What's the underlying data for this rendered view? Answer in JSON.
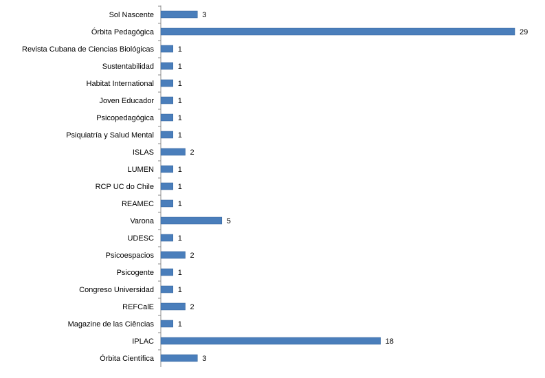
{
  "chart_data": {
    "type": "bar",
    "orientation": "horizontal",
    "categories": [
      "Sol Nascente",
      "Órbita Pedagógica",
      "Revista Cubana de Ciencias Biológicas",
      "Sustentabilidad",
      "Habitat International",
      "Joven Educador",
      "Psicopedagógica",
      "Psiquiatría y Salud Mental",
      "ISLAS",
      "LUMEN",
      "RCP UC do Chile",
      "REAMEC",
      "Varona",
      "UDESC",
      "Psicoespacios",
      "Psicogente",
      "Congreso Universidad",
      "REFCalE",
      "Magazine de las Ciências",
      "IPLAC",
      "Órbita Científica"
    ],
    "values": [
      3,
      29,
      1,
      1,
      1,
      1,
      1,
      1,
      2,
      1,
      1,
      1,
      5,
      1,
      2,
      1,
      1,
      2,
      1,
      18,
      3
    ],
    "xlim": [
      0,
      29
    ],
    "grid": false,
    "legend": "none",
    "data_labels": true,
    "colors": {
      "bar": "#4a7ebb",
      "bar_edge": "#2f5f98",
      "axis": "#888888"
    }
  }
}
